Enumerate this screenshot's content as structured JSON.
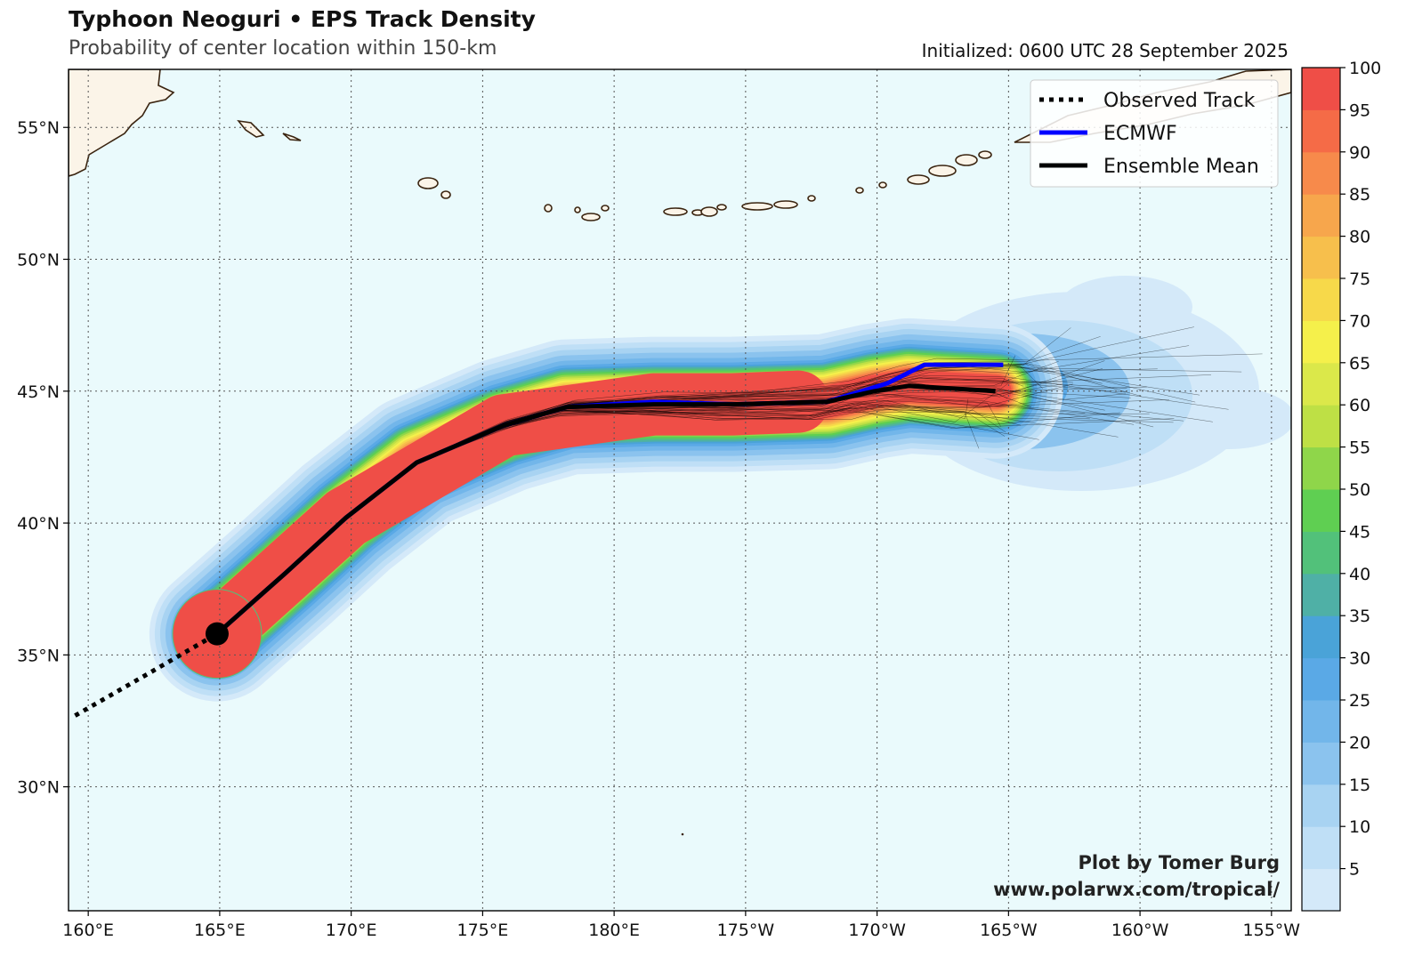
{
  "header": {
    "title": "Typhoon Neoguri • EPS Track Density",
    "subtitle": "Probability of center location within 150-km",
    "initialized": "Initialized: 0600 UTC 28 September 2025"
  },
  "credit": {
    "line1": "Plot by Tomer Burg",
    "line2": "www.polarwx.com/tropical/"
  },
  "map": {
    "lon_ticks": [
      {
        "value": 160,
        "label": "160°E"
      },
      {
        "value": 165,
        "label": "165°E"
      },
      {
        "value": 170,
        "label": "170°E"
      },
      {
        "value": 175,
        "label": "175°E"
      },
      {
        "value": 180,
        "label": "180°E"
      },
      {
        "value": 185,
        "label": "175°W"
      },
      {
        "value": 190,
        "label": "170°W"
      },
      {
        "value": 195,
        "label": "165°W"
      },
      {
        "value": 200,
        "label": "160°W"
      },
      {
        "value": 205,
        "label": "155°W"
      }
    ],
    "lat_ticks": [
      {
        "value": 30,
        "label": "30°N"
      },
      {
        "value": 35,
        "label": "35°N"
      },
      {
        "value": 40,
        "label": "40°N"
      },
      {
        "value": 45,
        "label": "45°N"
      },
      {
        "value": 50,
        "label": "50°N"
      },
      {
        "value": 55,
        "label": "55°N"
      }
    ],
    "lon_range": [
      159.25,
      205.75
    ],
    "lat_range": [
      25.3,
      57.2
    ],
    "ocean_color": "#eafafc",
    "land_color": "#fbf4e8",
    "coast_color": "#3a2410",
    "grid": "dotted"
  },
  "legend": {
    "placement": "top-right",
    "entries": [
      {
        "label": "Observed Track",
        "color": "#000000",
        "style": "dotted"
      },
      {
        "label": "ECMWF",
        "color": "#0000ff",
        "style": "solid"
      },
      {
        "label": "Ensemble Mean",
        "color": "#000000",
        "style": "solid"
      }
    ]
  },
  "colorbar": {
    "ticks": [
      "5",
      "10",
      "15",
      "20",
      "25",
      "30",
      "35",
      "40",
      "45",
      "50",
      "55",
      "60",
      "65",
      "70",
      "75",
      "80",
      "85",
      "90",
      "95",
      "100"
    ],
    "colors": [
      "#d4e9f9",
      "#bfdff6",
      "#a8d3f2",
      "#8bc3ee",
      "#72b6ea",
      "#5aa9e6",
      "#4aa3d8",
      "#4fb0a6",
      "#52c17a",
      "#5fcf52",
      "#8fd64a",
      "#bee045",
      "#dbe84a",
      "#f5f04b",
      "#f7d94a",
      "#f7bf4c",
      "#f7a64c",
      "#f78a4b",
      "#f56b47",
      "#ef4e47"
    ]
  },
  "chart_data": {
    "type": "track_density_map",
    "observed_track": [
      [
        159.5,
        32.7
      ],
      [
        162.3,
        34.3
      ],
      [
        164.9,
        35.8
      ]
    ],
    "current_position": [
      164.9,
      35.8
    ],
    "ecmwf_track": [
      [
        164.9,
        35.8
      ],
      [
        167.5,
        38.1
      ],
      [
        169.8,
        40.2
      ],
      [
        172.5,
        42.3
      ],
      [
        175.8,
        43.7
      ],
      [
        178.2,
        44.4
      ],
      [
        181.5,
        44.6
      ],
      [
        184.5,
        44.5
      ],
      [
        188.1,
        44.6
      ],
      [
        190.4,
        45.3
      ],
      [
        191.8,
        46.0
      ],
      [
        194.8,
        46.0
      ]
    ],
    "ensemble_mean_track": [
      [
        164.9,
        35.8
      ],
      [
        167.5,
        38.1
      ],
      [
        169.8,
        40.2
      ],
      [
        172.5,
        42.3
      ],
      [
        175.8,
        43.7
      ],
      [
        178.2,
        44.4
      ],
      [
        181.5,
        44.5
      ],
      [
        184.5,
        44.5
      ],
      [
        188.1,
        44.6
      ],
      [
        189.9,
        45.0
      ],
      [
        191.2,
        45.2
      ],
      [
        194.5,
        45.0
      ]
    ]
  }
}
